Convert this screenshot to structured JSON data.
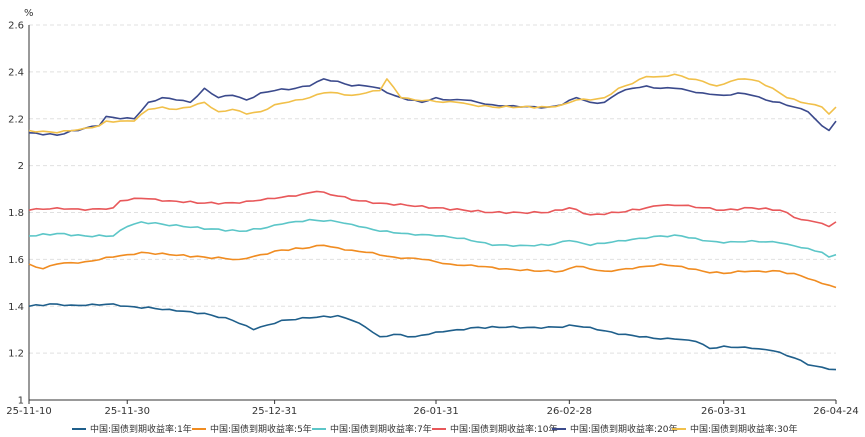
{
  "chart_data": {
    "type": "line",
    "title": "",
    "xlabel": "",
    "ylabel": "%",
    "ylim": [
      1,
      2.6
    ],
    "yticks": [
      1,
      1.2,
      1.4,
      1.6,
      1.8,
      2,
      2.2,
      2.4,
      2.6
    ],
    "ytick_labels": [
      "1",
      "1.2",
      "1.4",
      "1.6",
      "1.8",
      "2",
      "2.2",
      "2.4",
      "2.6"
    ],
    "x_ticks": [
      {
        "index": 0,
        "label": "25-11-10"
      },
      {
        "index": 14,
        "label": "25-11-30"
      },
      {
        "index": 35,
        "label": "25-12-31"
      },
      {
        "index": 58,
        "label": "26-01-31"
      },
      {
        "index": 77,
        "label": "26-02-28"
      },
      {
        "index": 99,
        "label": "26-03-31"
      },
      {
        "index": 115,
        "label": "26-04-24"
      }
    ],
    "n_points": 116,
    "grid": "horizontal dashed",
    "legend_position": "bottom",
    "series": [
      {
        "name": "中国:国债到期收益率:1年",
        "color": "#1f5f8b",
        "knots": [
          [
            0,
            1.4
          ],
          [
            3,
            1.41
          ],
          [
            6,
            1.405
          ],
          [
            10,
            1.405
          ],
          [
            12,
            1.41
          ],
          [
            14,
            1.4
          ],
          [
            18,
            1.39
          ],
          [
            21,
            1.38
          ],
          [
            25,
            1.37
          ],
          [
            29,
            1.34
          ],
          [
            32,
            1.3
          ],
          [
            34,
            1.32
          ],
          [
            36,
            1.34
          ],
          [
            40,
            1.35
          ],
          [
            44,
            1.36
          ],
          [
            46,
            1.34
          ],
          [
            48,
            1.31
          ],
          [
            50,
            1.27
          ],
          [
            52,
            1.28
          ],
          [
            55,
            1.27
          ],
          [
            58,
            1.29
          ],
          [
            61,
            1.3
          ],
          [
            64,
            1.31
          ],
          [
            68,
            1.31
          ],
          [
            72,
            1.31
          ],
          [
            76,
            1.31
          ],
          [
            77,
            1.32
          ],
          [
            80,
            1.31
          ],
          [
            84,
            1.28
          ],
          [
            88,
            1.27
          ],
          [
            90,
            1.26
          ],
          [
            92,
            1.26
          ],
          [
            95,
            1.25
          ],
          [
            97,
            1.22
          ],
          [
            99,
            1.23
          ],
          [
            103,
            1.22
          ],
          [
            106,
            1.21
          ],
          [
            109,
            1.18
          ],
          [
            111,
            1.15
          ],
          [
            113,
            1.14
          ],
          [
            115,
            1.13
          ]
        ]
      },
      {
        "name": "中国:国债到期收益率:5年",
        "color": "#f08c21",
        "knots": [
          [
            0,
            1.58
          ],
          [
            2,
            1.56
          ],
          [
            4,
            1.58
          ],
          [
            8,
            1.59
          ],
          [
            12,
            1.61
          ],
          [
            14,
            1.62
          ],
          [
            16,
            1.63
          ],
          [
            20,
            1.62
          ],
          [
            25,
            1.61
          ],
          [
            30,
            1.6
          ],
          [
            33,
            1.62
          ],
          [
            36,
            1.64
          ],
          [
            40,
            1.65
          ],
          [
            42,
            1.66
          ],
          [
            45,
            1.64
          ],
          [
            48,
            1.63
          ],
          [
            52,
            1.61
          ],
          [
            56,
            1.6
          ],
          [
            60,
            1.58
          ],
          [
            64,
            1.57
          ],
          [
            68,
            1.56
          ],
          [
            72,
            1.55
          ],
          [
            76,
            1.55
          ],
          [
            78,
            1.57
          ],
          [
            82,
            1.55
          ],
          [
            86,
            1.56
          ],
          [
            90,
            1.58
          ],
          [
            93,
            1.57
          ],
          [
            96,
            1.55
          ],
          [
            99,
            1.54
          ],
          [
            101,
            1.55
          ],
          [
            104,
            1.55
          ],
          [
            107,
            1.55
          ],
          [
            110,
            1.53
          ],
          [
            112,
            1.51
          ],
          [
            114,
            1.49
          ],
          [
            115,
            1.48
          ]
        ]
      },
      {
        "name": "中国:国债到期收益率:7年",
        "color": "#5cc6c8",
        "knots": [
          [
            0,
            1.7
          ],
          [
            4,
            1.71
          ],
          [
            8,
            1.7
          ],
          [
            12,
            1.7
          ],
          [
            14,
            1.74
          ],
          [
            16,
            1.76
          ],
          [
            19,
            1.75
          ],
          [
            22,
            1.74
          ],
          [
            26,
            1.73
          ],
          [
            30,
            1.72
          ],
          [
            33,
            1.73
          ],
          [
            36,
            1.75
          ],
          [
            40,
            1.77
          ],
          [
            44,
            1.76
          ],
          [
            47,
            1.74
          ],
          [
            50,
            1.72
          ],
          [
            54,
            1.71
          ],
          [
            58,
            1.7
          ],
          [
            62,
            1.69
          ],
          [
            66,
            1.66
          ],
          [
            70,
            1.66
          ],
          [
            74,
            1.66
          ],
          [
            77,
            1.68
          ],
          [
            80,
            1.66
          ],
          [
            84,
            1.68
          ],
          [
            88,
            1.69
          ],
          [
            90,
            1.7
          ],
          [
            93,
            1.7
          ],
          [
            96,
            1.68
          ],
          [
            99,
            1.67
          ],
          [
            103,
            1.68
          ],
          [
            107,
            1.67
          ],
          [
            110,
            1.65
          ],
          [
            113,
            1.63
          ],
          [
            114,
            1.61
          ],
          [
            115,
            1.62
          ]
        ]
      },
      {
        "name": "中国:国债到期收益率:10年",
        "color": "#e8585a",
        "knots": [
          [
            0,
            1.81
          ],
          [
            4,
            1.82
          ],
          [
            8,
            1.81
          ],
          [
            12,
            1.82
          ],
          [
            13,
            1.85
          ],
          [
            16,
            1.86
          ],
          [
            20,
            1.85
          ],
          [
            25,
            1.84
          ],
          [
            30,
            1.84
          ],
          [
            34,
            1.86
          ],
          [
            38,
            1.87
          ],
          [
            41,
            1.89
          ],
          [
            44,
            1.87
          ],
          [
            47,
            1.85
          ],
          [
            50,
            1.84
          ],
          [
            54,
            1.83
          ],
          [
            58,
            1.82
          ],
          [
            62,
            1.81
          ],
          [
            66,
            1.8
          ],
          [
            70,
            1.8
          ],
          [
            74,
            1.8
          ],
          [
            77,
            1.82
          ],
          [
            80,
            1.79
          ],
          [
            84,
            1.8
          ],
          [
            88,
            1.82
          ],
          [
            90,
            1.83
          ],
          [
            93,
            1.83
          ],
          [
            96,
            1.82
          ],
          [
            99,
            1.81
          ],
          [
            103,
            1.82
          ],
          [
            107,
            1.81
          ],
          [
            110,
            1.77
          ],
          [
            112,
            1.76
          ],
          [
            114,
            1.74
          ],
          [
            115,
            1.76
          ]
        ]
      },
      {
        "name": "中国:国债到期收益率:20年",
        "color": "#3b4a8c",
        "knots": [
          [
            0,
            2.14
          ],
          [
            4,
            2.13
          ],
          [
            8,
            2.16
          ],
          [
            10,
            2.17
          ],
          [
            11,
            2.21
          ],
          [
            13,
            2.2
          ],
          [
            15,
            2.2
          ],
          [
            17,
            2.27
          ],
          [
            19,
            2.29
          ],
          [
            21,
            2.28
          ],
          [
            23,
            2.27
          ],
          [
            25,
            2.33
          ],
          [
            27,
            2.29
          ],
          [
            29,
            2.3
          ],
          [
            31,
            2.28
          ],
          [
            33,
            2.31
          ],
          [
            35,
            2.32
          ],
          [
            38,
            2.33
          ],
          [
            40,
            2.34
          ],
          [
            42,
            2.37
          ],
          [
            44,
            2.36
          ],
          [
            46,
            2.34
          ],
          [
            48,
            2.34
          ],
          [
            50,
            2.33
          ],
          [
            52,
            2.3
          ],
          [
            54,
            2.28
          ],
          [
            56,
            2.27
          ],
          [
            58,
            2.29
          ],
          [
            60,
            2.28
          ],
          [
            62,
            2.28
          ],
          [
            64,
            2.27
          ],
          [
            66,
            2.26
          ],
          [
            70,
            2.25
          ],
          [
            74,
            2.25
          ],
          [
            76,
            2.26
          ],
          [
            78,
            2.29
          ],
          [
            80,
            2.27
          ],
          [
            82,
            2.27
          ],
          [
            84,
            2.31
          ],
          [
            86,
            2.33
          ],
          [
            88,
            2.34
          ],
          [
            90,
            2.33
          ],
          [
            92,
            2.33
          ],
          [
            94,
            2.32
          ],
          [
            96,
            2.31
          ],
          [
            99,
            2.3
          ],
          [
            101,
            2.31
          ],
          [
            103,
            2.3
          ],
          [
            105,
            2.28
          ],
          [
            107,
            2.27
          ],
          [
            109,
            2.25
          ],
          [
            111,
            2.23
          ],
          [
            112,
            2.2
          ],
          [
            113,
            2.17
          ],
          [
            114,
            2.15
          ],
          [
            115,
            2.19
          ]
        ]
      },
      {
        "name": "中国:国债到期收益率:30年",
        "color": "#f1c04a",
        "knots": [
          [
            0,
            2.15
          ],
          [
            4,
            2.14
          ],
          [
            8,
            2.16
          ],
          [
            10,
            2.17
          ],
          [
            11,
            2.19
          ],
          [
            13,
            2.19
          ],
          [
            15,
            2.19
          ],
          [
            17,
            2.24
          ],
          [
            19,
            2.25
          ],
          [
            21,
            2.24
          ],
          [
            23,
            2.25
          ],
          [
            25,
            2.27
          ],
          [
            27,
            2.23
          ],
          [
            29,
            2.24
          ],
          [
            31,
            2.22
          ],
          [
            33,
            2.23
          ],
          [
            35,
            2.26
          ],
          [
            38,
            2.28
          ],
          [
            40,
            2.29
          ],
          [
            42,
            2.31
          ],
          [
            44,
            2.31
          ],
          [
            46,
            2.3
          ],
          [
            48,
            2.31
          ],
          [
            50,
            2.32
          ],
          [
            51,
            2.37
          ],
          [
            53,
            2.29
          ],
          [
            55,
            2.28
          ],
          [
            57,
            2.28
          ],
          [
            59,
            2.27
          ],
          [
            61,
            2.27
          ],
          [
            63,
            2.26
          ],
          [
            66,
            2.25
          ],
          [
            70,
            2.25
          ],
          [
            74,
            2.25
          ],
          [
            76,
            2.26
          ],
          [
            78,
            2.28
          ],
          [
            80,
            2.28
          ],
          [
            82,
            2.29
          ],
          [
            84,
            2.33
          ],
          [
            86,
            2.35
          ],
          [
            88,
            2.38
          ],
          [
            90,
            2.38
          ],
          [
            92,
            2.39
          ],
          [
            94,
            2.37
          ],
          [
            96,
            2.36
          ],
          [
            98,
            2.34
          ],
          [
            100,
            2.36
          ],
          [
            102,
            2.37
          ],
          [
            104,
            2.36
          ],
          [
            106,
            2.33
          ],
          [
            108,
            2.29
          ],
          [
            110,
            2.27
          ],
          [
            112,
            2.26
          ],
          [
            113,
            2.25
          ],
          [
            114,
            2.22
          ],
          [
            115,
            2.25
          ]
        ]
      }
    ]
  }
}
